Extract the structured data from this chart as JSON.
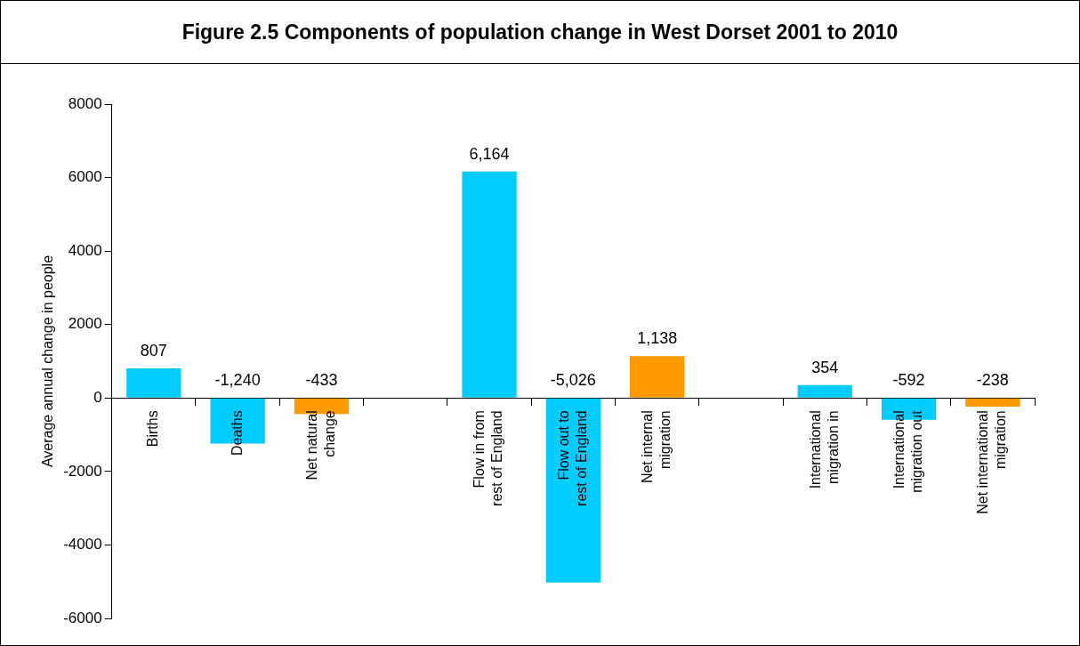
{
  "chart_data": {
    "type": "bar",
    "title": "Figure 2.5 Components of population change in West Dorset 2001 to 2010",
    "ylabel": "Average annual change in people",
    "categories": [
      "Births",
      "Deaths",
      "Net natural change",
      null,
      "Flow in from rest of England",
      "Flow out to rest of England",
      "Net internal migration",
      null,
      "International migration in",
      "International migration out",
      "Net international migration"
    ],
    "values": [
      807,
      -1240,
      -433,
      null,
      6164,
      -5026,
      1138,
      null,
      354,
      -592,
      -238
    ],
    "colors": [
      "#00ccff",
      "#00ccff",
      "#ff9900",
      "#00ccff",
      "#00ccff",
      "#00ccff",
      "#ff9900",
      "#00ccff",
      "#00ccff",
      "#00ccff",
      "#ff9900"
    ],
    "value_labels": [
      "807",
      "-1,240",
      "-433",
      null,
      "6,164",
      "-5,026",
      "1,138",
      null,
      "354",
      "-592",
      "-238"
    ],
    "ylim": [
      -6000,
      8000
    ],
    "yticks": [
      -6000,
      -4000,
      -2000,
      0,
      2000,
      4000,
      6000,
      8000
    ],
    "grid": false,
    "legend": false
  }
}
